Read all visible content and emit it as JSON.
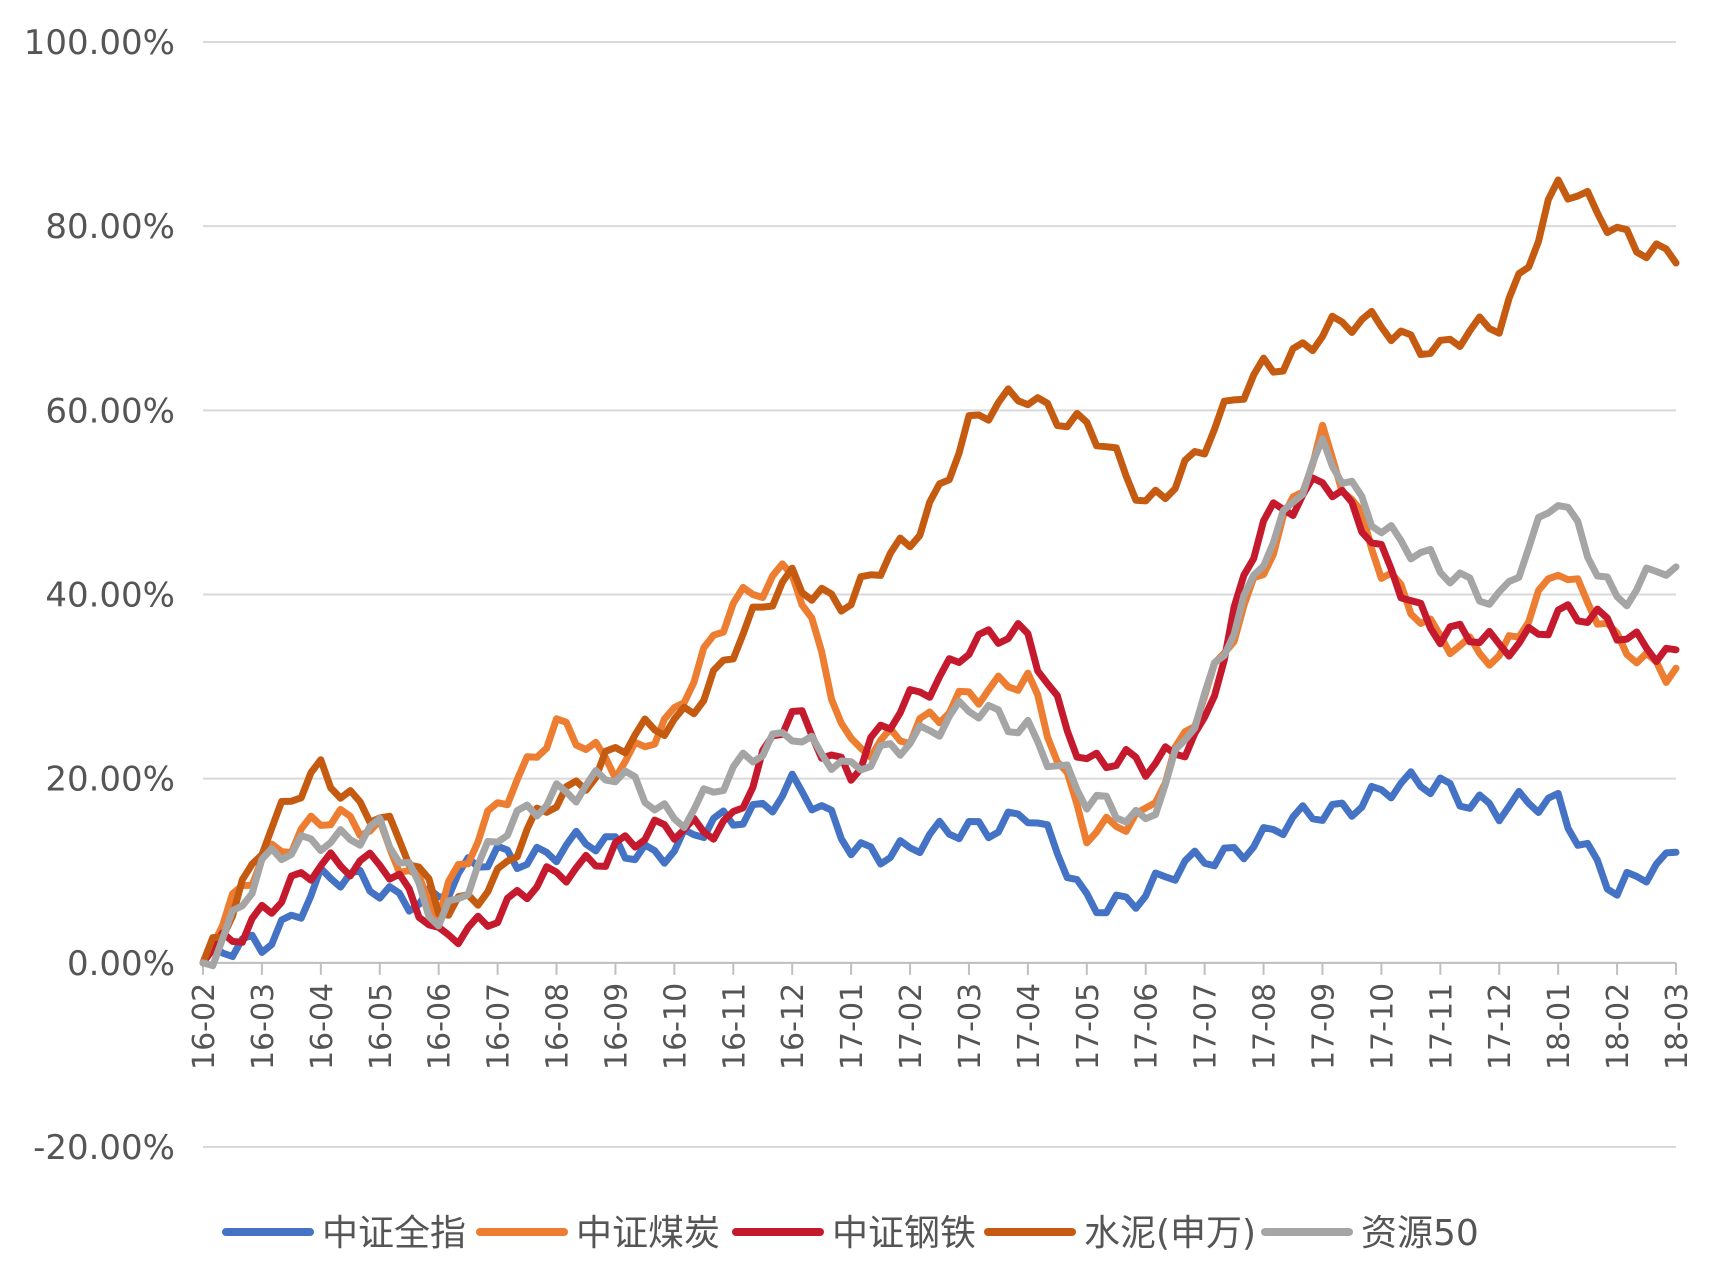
{
  "chart_data": {
    "type": "line",
    "title": "",
    "xlabel": "",
    "ylabel": "",
    "ylim": [
      -0.2,
      1.0
    ],
    "grid": true,
    "legend_position": "bottom",
    "y_ticks": [
      "100.00%",
      "80.00%",
      "60.00%",
      "40.00%",
      "20.00%",
      "0.00%",
      "-20.00%"
    ],
    "y_tick_values": [
      1.0,
      0.8,
      0.6,
      0.4,
      0.2,
      0.0,
      -0.2
    ],
    "x": [
      "16-02",
      "16-03",
      "16-04",
      "16-05",
      "16-06",
      "16-07",
      "16-08",
      "16-09",
      "16-10",
      "16-11",
      "16-12",
      "17-01",
      "17-02",
      "17-03",
      "17-04",
      "17-05",
      "17-06",
      "17-07",
      "17-08",
      "17-09",
      "17-10",
      "17-11",
      "17-12",
      "18-01",
      "18-02",
      "18-03"
    ],
    "series": [
      {
        "name": "中证全指",
        "color": "#4472C4",
        "values": [
          0.0,
          0.02,
          0.09,
          0.08,
          0.07,
          0.12,
          0.12,
          0.13,
          0.12,
          0.16,
          0.19,
          0.13,
          0.12,
          0.15,
          0.16,
          0.07,
          0.07,
          0.12,
          0.13,
          0.17,
          0.18,
          0.2,
          0.16,
          0.18,
          0.07,
          0.12
        ]
      },
      {
        "name": "中证煤炭",
        "color": "#ED7D31",
        "values": [
          0.0,
          0.12,
          0.15,
          0.15,
          0.05,
          0.18,
          0.25,
          0.22,
          0.26,
          0.4,
          0.42,
          0.24,
          0.24,
          0.3,
          0.3,
          0.15,
          0.15,
          0.3,
          0.42,
          0.58,
          0.42,
          0.36,
          0.32,
          0.44,
          0.34,
          0.32
        ]
      },
      {
        "name": "中证钢铁",
        "color": "#C5192D",
        "values": [
          0.0,
          0.06,
          0.1,
          0.12,
          0.02,
          0.06,
          0.09,
          0.13,
          0.14,
          0.16,
          0.27,
          0.21,
          0.28,
          0.35,
          0.35,
          0.22,
          0.21,
          0.26,
          0.48,
          0.53,
          0.44,
          0.36,
          0.34,
          0.38,
          0.36,
          0.34
        ]
      },
      {
        "name": "水泥(申万)",
        "color": "#C55A11",
        "values": [
          0.0,
          0.13,
          0.21,
          0.16,
          0.06,
          0.09,
          0.18,
          0.23,
          0.26,
          0.34,
          0.42,
          0.39,
          0.46,
          0.58,
          0.62,
          0.58,
          0.5,
          0.56,
          0.65,
          0.68,
          0.7,
          0.66,
          0.7,
          0.84,
          0.8,
          0.76
        ]
      },
      {
        "name": "资源50",
        "color": "#A5A5A5",
        "values": [
          0.0,
          0.1,
          0.14,
          0.14,
          0.05,
          0.13,
          0.19,
          0.2,
          0.16,
          0.2,
          0.26,
          0.2,
          0.25,
          0.27,
          0.26,
          0.17,
          0.16,
          0.28,
          0.45,
          0.55,
          0.48,
          0.42,
          0.4,
          0.5,
          0.4,
          0.43
        ]
      }
    ]
  }
}
